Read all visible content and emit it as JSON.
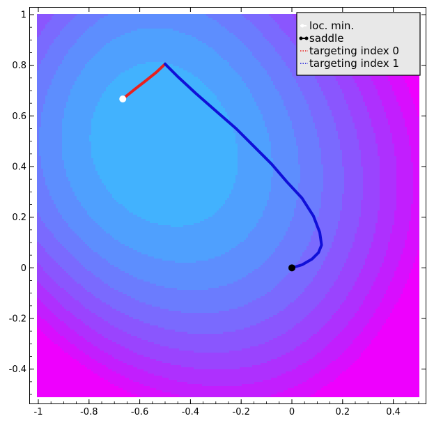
{
  "chart_data": {
    "type": "contour",
    "title": "",
    "xlabel": "",
    "ylabel": "",
    "xlim": [
      -1.0,
      0.5
    ],
    "ylim": [
      -0.5,
      1.0
    ],
    "x_ticks": [
      -1,
      -0.8,
      -0.6,
      -0.4,
      -0.2,
      0,
      0.2,
      0.4
    ],
    "x_tick_labels": [
      "-1",
      "-0.8",
      "-0.6",
      "-0.4",
      "-0.2",
      "0",
      "0.2",
      "0.4"
    ],
    "y_ticks": [
      -0.4,
      -0.2,
      0,
      0.2,
      0.4,
      0.6,
      0.8,
      1
    ],
    "y_tick_labels": [
      "-0.4",
      "-0.2",
      "0",
      "0.2",
      "0.4",
      "0.6",
      "0.8",
      "1"
    ],
    "grid": false,
    "legend_position": "top-right",
    "colormap": [
      "#10f4fe",
      "#28dcfe",
      "#36c6fe",
      "#42b2fe",
      "#4fa0fe",
      "#5d8efe",
      "#6b7cfe",
      "#7a6afe",
      "#8a56fe",
      "#9a44fe",
      "#ae30fe",
      "#c21efe",
      "#d80efe",
      "#ee00fe"
    ],
    "levels_note": "",
    "series": [
      {
        "name": "loc. min.",
        "kind": "point",
        "color": "#ffffff",
        "points": [
          [
            -0.667,
            0.667
          ]
        ]
      },
      {
        "name": "saddle",
        "kind": "point",
        "color": "#000000",
        "points": [
          [
            0.0,
            0.0
          ]
        ]
      },
      {
        "name": "targeting index 0",
        "kind": "line",
        "color": "#e8201e",
        "points": [
          [
            -0.667,
            0.667
          ],
          [
            -0.62,
            0.705
          ],
          [
            -0.575,
            0.74
          ],
          [
            -0.535,
            0.772
          ],
          [
            -0.5,
            0.805
          ]
        ]
      },
      {
        "name": "targeting index 1",
        "kind": "line",
        "color": "#1010d8",
        "points": [
          [
            -0.5,
            0.805
          ],
          [
            -0.45,
            0.755
          ],
          [
            -0.38,
            0.69
          ],
          [
            -0.3,
            0.62
          ],
          [
            -0.22,
            0.55
          ],
          [
            -0.15,
            0.48
          ],
          [
            -0.08,
            0.41
          ],
          [
            -0.02,
            0.34
          ],
          [
            0.04,
            0.275
          ],
          [
            0.085,
            0.205
          ],
          [
            0.11,
            0.14
          ],
          [
            0.117,
            0.09
          ],
          [
            0.105,
            0.06
          ],
          [
            0.08,
            0.035
          ],
          [
            0.04,
            0.012
          ],
          [
            0.0,
            0.0
          ]
        ]
      }
    ]
  }
}
